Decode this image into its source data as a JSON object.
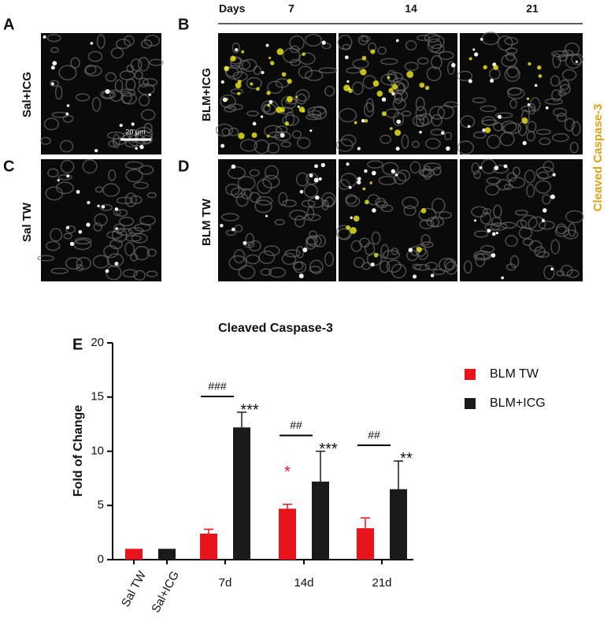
{
  "panels": {
    "letters": [
      "A",
      "B",
      "C",
      "D"
    ],
    "row_labels": [
      "Sal+ICG",
      "BLM+ICG",
      "Sal TW",
      "BLM TW"
    ],
    "days_label": "Days",
    "days": [
      "7",
      "14",
      "21"
    ],
    "stain_label": "Cleaved Caspase-3",
    "scale_bar": "20 μm"
  },
  "chart_data": {
    "type": "bar",
    "panel_letter": "E",
    "title": "Cleaved Caspase-3",
    "ylabel": "Fold of Change",
    "categories": [
      "Sal TW",
      "Sal+ICG",
      "7d",
      "14d",
      "21d"
    ],
    "series": [
      {
        "name": "BLM TW",
        "color": "#e8141c",
        "values": [
          1,
          null,
          2.4,
          4.7,
          2.9
        ],
        "errors": [
          null,
          null,
          0.4,
          0.4,
          0.95
        ],
        "stars": [
          null,
          null,
          null,
          "*",
          null
        ]
      },
      {
        "name": "BLM+ICG",
        "color": "#1a1a1a",
        "values": [
          null,
          1,
          12.2,
          7.2,
          6.5
        ],
        "errors": [
          null,
          null,
          1.4,
          2.8,
          2.6
        ],
        "stars": [
          null,
          null,
          "***",
          "***",
          "**"
        ]
      }
    ],
    "hashes": [
      null,
      null,
      "###",
      "##",
      "##"
    ],
    "ylim": [
      0,
      20
    ],
    "yticks": [
      0,
      5,
      10,
      15,
      20
    ],
    "legend": "right",
    "grid": false
  }
}
